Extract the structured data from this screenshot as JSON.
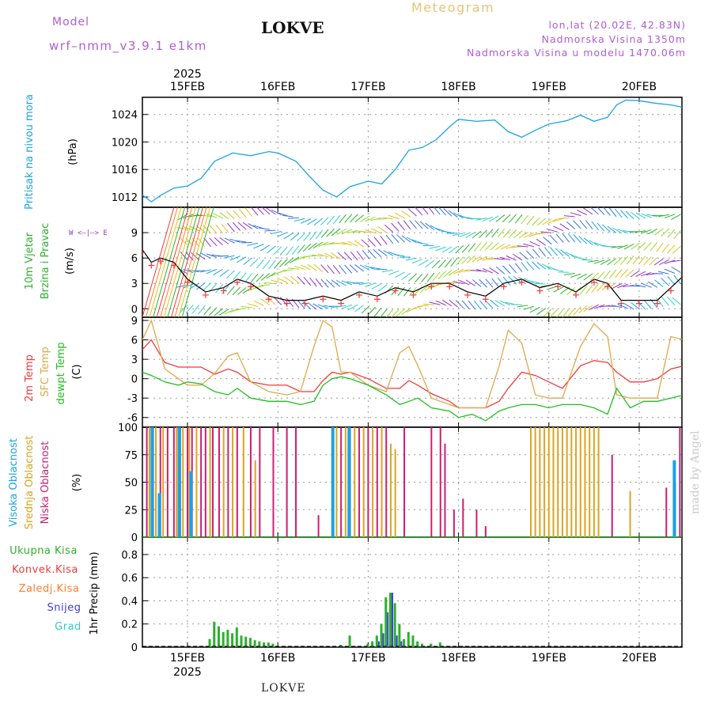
{
  "header": {
    "model_label": "Model",
    "model_name": "wrf–nmm_v3.9.1  e1km",
    "station": "LOKVE",
    "title": "Meteogram",
    "coords": "lon,lat (20.02E, 42.83N)",
    "elevation": "Nadmorska Visina 1350m",
    "model_elevation": "Nadmorska Visina u modelu 1470.06m"
  },
  "footer": {
    "station": "LOKVE",
    "watermark": "made by Angel"
  },
  "colors": {
    "pressure": "#1aa3e6",
    "temp2m": "#ee3b3b",
    "sfc": "#e0a84a",
    "dewpt": "#22c022",
    "high_cloud": "#1aa3e6",
    "mid_cloud": "#daa520",
    "low_cloud": "#cc1e72",
    "precip_total": "#2db02d",
    "precip_conv": "#ee3b3b",
    "precip_freeze": "#ff7f2a",
    "snow": "#3b3bdc",
    "graupel": "#33cccc",
    "wind_purple": "#9932cc"
  },
  "axis": {
    "year_top": "2025",
    "year_bottom": "2025",
    "dates": [
      "15FEB",
      "16FEB",
      "17FEB",
      "18FEB",
      "19FEB",
      "20FEB"
    ]
  },
  "panels": {
    "pressure": {
      "label": "Pritisak na nivou mora",
      "unit": "(hPa)"
    },
    "wind": {
      "label1": "10m Vjetar",
      "label2": "Brzina i Pravac",
      "unit": "(m/s)",
      "compass": "W <–|–> E"
    },
    "temp": {
      "label1": "2m Temp",
      "label2": "SFC Temp",
      "label3": "dewpt Temp",
      "unit": "(C)"
    },
    "cloud": {
      "label1": "Visoka Oblacnost",
      "label2": "Srednja Oblacnost",
      "label3": "Niska Oblacnost",
      "unit": "(%)"
    },
    "precip": {
      "legend": [
        "Ukupna Kisa",
        "Konvek.Kisa",
        "Zaledj.Kisa",
        "Snijeg",
        "Grad"
      ],
      "ylabel": "1hr Precip (mm)"
    }
  },
  "chart_data": [
    {
      "type": "line",
      "title": "Pritisak na nivou mora",
      "ylabel": "(hPa)",
      "ylim": [
        1010.5,
        1026.5
      ],
      "yticks": [
        1012,
        1016,
        1020,
        1024
      ],
      "grid": true,
      "x_day": [
        14.5,
        14.6,
        14.7,
        14.85,
        15.0,
        15.15,
        15.3,
        15.5,
        15.7,
        15.9,
        16.0,
        16.2,
        16.35,
        16.5,
        16.65,
        16.8,
        17.0,
        17.15,
        17.3,
        17.45,
        17.6,
        17.75,
        17.9,
        18.0,
        18.2,
        18.4,
        18.55,
        18.7,
        18.85,
        19.0,
        19.2,
        19.35,
        19.5,
        19.65,
        19.75,
        19.85,
        20.0,
        20.2,
        20.35,
        20.5
      ],
      "series": [
        {
          "values": [
            1012.3,
            1011.3,
            1012.2,
            1013.3,
            1013.6,
            1014.7,
            1017.2,
            1018.4,
            1018.0,
            1018.6,
            1018.4,
            1017.2,
            1015.0,
            1013.0,
            1012.0,
            1013.5,
            1014.3,
            1013.9,
            1016.0,
            1018.8,
            1019.2,
            1020.3,
            1022.2,
            1023.3,
            1023.0,
            1023.2,
            1021.5,
            1020.7,
            1021.7,
            1022.6,
            1023.1,
            1023.9,
            1023.0,
            1023.6,
            1025.4,
            1026.1,
            1026.0,
            1025.6,
            1025.4,
            1025.0
          ]
        }
      ]
    },
    {
      "type": "line",
      "title": "10m Vjetar Brzina i Pravac",
      "ylabel": "(m/s)",
      "ylim": [
        -1,
        12
      ],
      "yticks": [
        0,
        3,
        6,
        9
      ],
      "grid": true,
      "x_day": [
        14.5,
        14.6,
        14.7,
        14.85,
        15.0,
        15.2,
        15.4,
        15.55,
        15.7,
        15.9,
        16.1,
        16.3,
        16.5,
        16.7,
        16.9,
        17.1,
        17.3,
        17.5,
        17.7,
        17.9,
        18.1,
        18.3,
        18.5,
        18.7,
        18.9,
        19.1,
        19.3,
        19.5,
        19.65,
        19.8,
        20.0,
        20.2,
        20.35,
        20.5
      ],
      "series": [
        {
          "values": [
            7.0,
            5.5,
            6.0,
            5.5,
            3.5,
            2.0,
            2.5,
            3.5,
            3.0,
            1.5,
            1.0,
            1.0,
            1.5,
            1.0,
            2.0,
            1.5,
            2.5,
            2.0,
            3.0,
            3.0,
            2.0,
            1.5,
            3.0,
            3.5,
            2.5,
            3.0,
            2.0,
            3.5,
            3.0,
            1.0,
            1.0,
            1.0,
            2.5,
            4.0
          ]
        }
      ]
    },
    {
      "type": "line",
      "title": "2m Temp / SFC Temp / dewpt Temp",
      "ylabel": "(C)",
      "ylim": [
        -7.5,
        9.5
      ],
      "yticks": [
        -6,
        -3,
        0,
        3,
        6,
        9
      ],
      "grid": true,
      "x_day": [
        14.5,
        14.6,
        14.75,
        14.9,
        15.0,
        15.15,
        15.3,
        15.45,
        15.55,
        15.7,
        15.9,
        16.1,
        16.25,
        16.4,
        16.5,
        16.6,
        16.7,
        16.8,
        17.0,
        17.2,
        17.35,
        17.45,
        17.55,
        17.7,
        17.9,
        18.0,
        18.15,
        18.3,
        18.45,
        18.55,
        18.7,
        18.85,
        19.0,
        19.15,
        19.35,
        19.5,
        19.65,
        19.75,
        19.9,
        20.05,
        20.2,
        20.35,
        20.5
      ],
      "series": [
        {
          "name": "2m Temp",
          "values": [
            4.5,
            6.0,
            2.5,
            1.8,
            1.8,
            1.8,
            0.7,
            1.5,
            1.0,
            -0.5,
            -1.0,
            -1.0,
            -2.0,
            -2.0,
            -0.3,
            1.0,
            0.7,
            1.0,
            0.0,
            -1.5,
            -1.5,
            -0.3,
            -1.0,
            -2.3,
            -3.5,
            -4.5,
            -4.5,
            -4.5,
            -3.5,
            -1.5,
            1.0,
            0.5,
            -0.5,
            -1.5,
            2.0,
            2.8,
            2.5,
            1.0,
            -0.5,
            -0.5,
            0.0,
            1.5,
            2.0
          ]
        },
        {
          "name": "SFC Temp",
          "values": [
            6.0,
            9.0,
            1.5,
            0.0,
            -1.0,
            -1.0,
            0.8,
            3.5,
            4.0,
            -0.5,
            -2.0,
            -2.5,
            -2.0,
            5.0,
            9.0,
            8.0,
            1.0,
            1.0,
            -1.0,
            -2.0,
            4.0,
            5.0,
            2.0,
            -3.0,
            -4.0,
            -4.5,
            -4.5,
            -4.5,
            2.0,
            7.5,
            5.5,
            -2.5,
            -3.0,
            -3.0,
            5.0,
            8.5,
            6.5,
            -2.5,
            -3.0,
            -3.0,
            -3.0,
            6.5,
            6.0
          ]
        },
        {
          "name": "dewpt Temp",
          "values": [
            1.0,
            0.5,
            -0.5,
            -1.0,
            -0.5,
            -0.8,
            -2.0,
            -2.5,
            -1.5,
            -3.0,
            -3.5,
            -3.5,
            -4.0,
            -3.5,
            -1.0,
            0.0,
            0.3,
            0.0,
            -1.0,
            -2.5,
            -4.0,
            -3.5,
            -3.0,
            -4.5,
            -5.0,
            -6.0,
            -5.5,
            -6.5,
            -5.0,
            -4.5,
            -4.0,
            -4.0,
            -4.5,
            -4.0,
            -4.0,
            -4.5,
            -5.5,
            -1.5,
            -4.5,
            -3.5,
            -3.5,
            -3.0,
            -2.5
          ]
        }
      ]
    },
    {
      "type": "bar",
      "title": "Visoka / Srednja / Niska Oblacnost",
      "ylabel": "(%)",
      "ylim": [
        0,
        100
      ],
      "yticks": [
        0,
        25,
        50,
        75,
        100
      ],
      "grid": true,
      "series": [
        {
          "name": "Niska Oblacnost",
          "x_day": [
            14.55,
            14.62,
            14.7,
            14.78,
            14.85,
            14.92,
            15.0,
            15.05,
            15.15,
            15.2,
            15.28,
            15.35,
            15.45,
            15.55,
            15.7,
            15.8,
            15.95,
            16.1,
            16.2,
            16.45,
            16.7,
            16.8,
            16.9,
            17.0,
            17.1,
            17.2,
            17.4,
            17.7,
            17.8,
            17.85,
            17.95,
            18.05,
            18.2,
            18.3,
            19.7,
            20.3,
            20.45
          ],
          "values": [
            100,
            100,
            100,
            100,
            100,
            100,
            100,
            100,
            100,
            100,
            100,
            100,
            100,
            100,
            100,
            100,
            100,
            100,
            100,
            20,
            100,
            100,
            100,
            100,
            100,
            100,
            100,
            100,
            100,
            85,
            25,
            35,
            25,
            10,
            75,
            45,
            100
          ]
        },
        {
          "name": "Srednja Oblacnost",
          "x_day": [
            14.58,
            14.65,
            14.73,
            14.88,
            14.95,
            15.02,
            15.1,
            15.25,
            15.4,
            15.5,
            15.62,
            15.75,
            16.65,
            16.75,
            16.85,
            16.95,
            17.05,
            17.15,
            17.25,
            17.3,
            18.8,
            18.85,
            18.9,
            18.95,
            19.0,
            19.05,
            19.1,
            19.15,
            19.2,
            19.25,
            19.3,
            19.35,
            19.4,
            19.45,
            19.5,
            19.55,
            19.9,
            20.4
          ],
          "values": [
            100,
            100,
            100,
            100,
            100,
            100,
            100,
            100,
            100,
            100,
            100,
            70,
            100,
            100,
            100,
            100,
            100,
            100,
            85,
            80,
            100,
            100,
            100,
            100,
            100,
            100,
            100,
            100,
            100,
            100,
            100,
            100,
            100,
            100,
            100,
            100,
            42,
            50
          ]
        },
        {
          "name": "Visoka Oblacnost",
          "x_day": [
            14.6,
            14.68,
            14.9,
            15.03,
            16.6,
            16.78,
            20.38,
            20.48
          ],
          "values": [
            100,
            40,
            100,
            60,
            100,
            100,
            70,
            100
          ]
        }
      ]
    },
    {
      "type": "bar",
      "title": "1hr Precip",
      "ylabel": "1hr Precip (mm)",
      "ylim": [
        0,
        0.95
      ],
      "yticks": [
        0,
        0.2,
        0.4,
        0.6,
        0.8
      ],
      "grid": true,
      "x_day": [
        15.25,
        15.3,
        15.35,
        15.4,
        15.45,
        15.5,
        15.55,
        15.6,
        15.65,
        15.7,
        15.75,
        15.8,
        15.85,
        15.9,
        15.95,
        16.7,
        16.8,
        17.0,
        17.05,
        17.1,
        17.15,
        17.2,
        17.25,
        17.3,
        17.35,
        17.4,
        17.45,
        17.5,
        17.55,
        17.6,
        17.7,
        17.8
      ],
      "series": [
        {
          "name": "Ukupna Kisa",
          "values": [
            0.07,
            0.22,
            0.18,
            0.13,
            0.15,
            0.12,
            0.17,
            0.1,
            0.09,
            0.08,
            0.06,
            0.05,
            0.04,
            0.04,
            0.03,
            0.02,
            0.1,
            0.03,
            0.05,
            0.1,
            0.2,
            0.43,
            0.47,
            0.38,
            0.2,
            0.07,
            0.13,
            0.1,
            0.05,
            0.03,
            0.03,
            0.04
          ]
        },
        {
          "name": "Snijeg",
          "values": [
            0.0,
            0.0,
            0.0,
            0.0,
            0.0,
            0.0,
            0.0,
            0.0,
            0.0,
            0.0,
            0.0,
            0.0,
            0.0,
            0.0,
            0.0,
            0.0,
            0.0,
            0.0,
            0.0,
            0.05,
            0.12,
            0.3,
            0.47,
            0.1,
            0.05,
            0.0,
            0.0,
            0.0,
            0.0,
            0.0,
            0.0,
            0.0
          ]
        }
      ]
    }
  ]
}
